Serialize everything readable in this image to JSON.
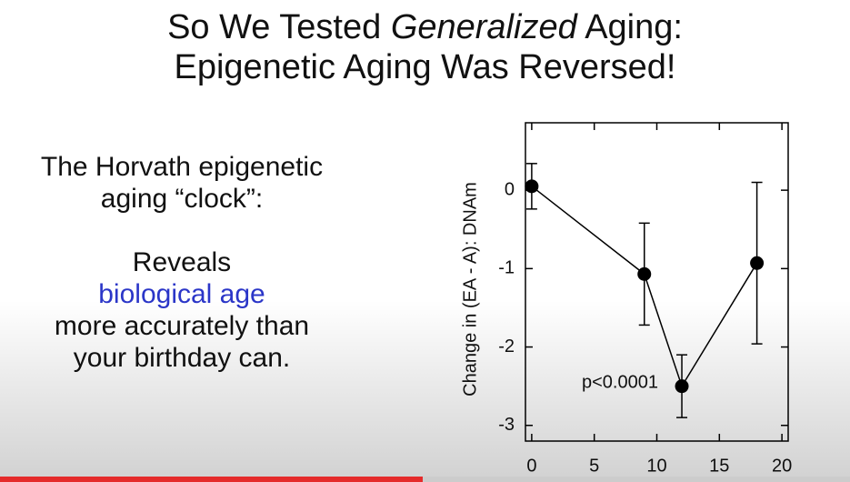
{
  "slide": {
    "title_line1": [
      "So We Tested",
      "Generalized",
      "Aging:"
    ],
    "title_line2": "Epigenetic Aging Was Reversed!",
    "body": [
      "The Horvath epigenetic",
      "aging “clock”:",
      "Reveals",
      "biological age",
      "more accurately than",
      "your birthday can."
    ]
  },
  "chart_data": {
    "type": "line",
    "y_label": "Change in (EA - A):  DNAm",
    "annotation": "p<0.0001",
    "x": [
      0,
      9,
      12,
      18
    ],
    "series": [
      {
        "color": "#000000",
        "values": [
          0.05,
          -1.07,
          -2.5,
          -0.93
        ],
        "errors": [
          0.29,
          0.65,
          0.4,
          1.03
        ]
      }
    ],
    "xlim": [
      -0.5,
      20.5
    ],
    "xticks": [
      0,
      5,
      10,
      15,
      20
    ],
    "ylim": [
      -3.2,
      0.86
    ],
    "yticks": [
      0,
      -1,
      -2,
      -3
    ]
  }
}
